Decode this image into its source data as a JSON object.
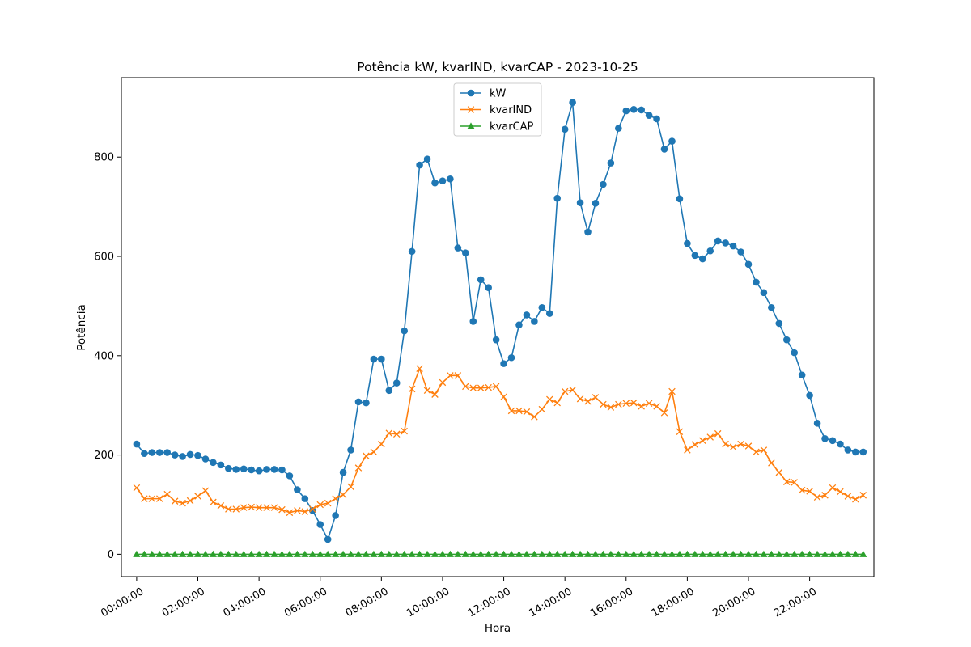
{
  "chart_data": {
    "type": "line",
    "title": "Potência kW, kvarIND, kvarCAP - 2023-10-25",
    "xlabel": "Hora",
    "ylabel": "Potência",
    "xlim": [
      -0.5,
      24.1
    ],
    "ylim": [
      -45,
      960
    ],
    "legend_placement": "upper-center",
    "grid": false,
    "x_tick_labels": [
      "00:00:00",
      "02:00:00",
      "04:00:00",
      "06:00:00",
      "08:00:00",
      "10:00:00",
      "12:00:00",
      "14:00:00",
      "16:00:00",
      "18:00:00",
      "20:00:00",
      "22:00:00"
    ],
    "y_tick_labels": [
      "0",
      "200",
      "400",
      "600",
      "800"
    ],
    "x_step_hours": 0.25,
    "series": [
      {
        "name": "kW",
        "color": "#1f77b4",
        "marker": "circle",
        "values": [
          222,
          203,
          205,
          205,
          205,
          200,
          197,
          201,
          199,
          192,
          185,
          180,
          173,
          171,
          172,
          170,
          168,
          171,
          171,
          170,
          158,
          130,
          112,
          88,
          60,
          30,
          78,
          165,
          210,
          307,
          305,
          393,
          393,
          330,
          345,
          450,
          610,
          784,
          796,
          748,
          752,
          756,
          617,
          607,
          469,
          553,
          537,
          432,
          384,
          396,
          462,
          482,
          469,
          497,
          485,
          717,
          856,
          910,
          708,
          649,
          707,
          745,
          788,
          858,
          893,
          896,
          895,
          884,
          877,
          816,
          832,
          716,
          626,
          602,
          595,
          611,
          631,
          627,
          621,
          609,
          584,
          548,
          527,
          497,
          465,
          432,
          406,
          361,
          320,
          264,
          233,
          229,
          222,
          210,
          206,
          206
        ]
      },
      {
        "name": "kvarIND",
        "color": "#ff7f0e",
        "marker": "x",
        "values": [
          134,
          112,
          112,
          112,
          121,
          107,
          103,
          108,
          117,
          128,
          105,
          98,
          91,
          91,
          94,
          95,
          94,
          94,
          94,
          90,
          84,
          88,
          86,
          91,
          100,
          103,
          112,
          120,
          136,
          174,
          198,
          206,
          222,
          244,
          242,
          248,
          333,
          374,
          330,
          322,
          346,
          360,
          360,
          338,
          335,
          335,
          336,
          338,
          317,
          289,
          289,
          287,
          277,
          292,
          312,
          305,
          328,
          331,
          313,
          308,
          316,
          302,
          296,
          302,
          304,
          305,
          298,
          304,
          298,
          285,
          328,
          247,
          210,
          221,
          229,
          236,
          243,
          222,
          216,
          222,
          218,
          206,
          210,
          184,
          165,
          146,
          145,
          129,
          127,
          115,
          119,
          134,
          126,
          117,
          111,
          119
        ]
      },
      {
        "name": "kvarCAP",
        "color": "#2ca02c",
        "marker": "triangle",
        "values": [
          0,
          0,
          0,
          0,
          0,
          0,
          0,
          0,
          0,
          0,
          0,
          0,
          0,
          0,
          0,
          0,
          0,
          0,
          0,
          0,
          0,
          0,
          0,
          0,
          0,
          0,
          0,
          0,
          0,
          0,
          0,
          0,
          0,
          0,
          0,
          0,
          0,
          0,
          0,
          0,
          0,
          0,
          0,
          0,
          0,
          0,
          0,
          0,
          0,
          0,
          0,
          0,
          0,
          0,
          0,
          0,
          0,
          0,
          0,
          0,
          0,
          0,
          0,
          0,
          0,
          0,
          0,
          0,
          0,
          0,
          0,
          0,
          0,
          0,
          0,
          0,
          0,
          0,
          0,
          0,
          0,
          0,
          0,
          0,
          0,
          0,
          0,
          0,
          0,
          0,
          0,
          0,
          0,
          0,
          0,
          0
        ]
      }
    ]
  }
}
